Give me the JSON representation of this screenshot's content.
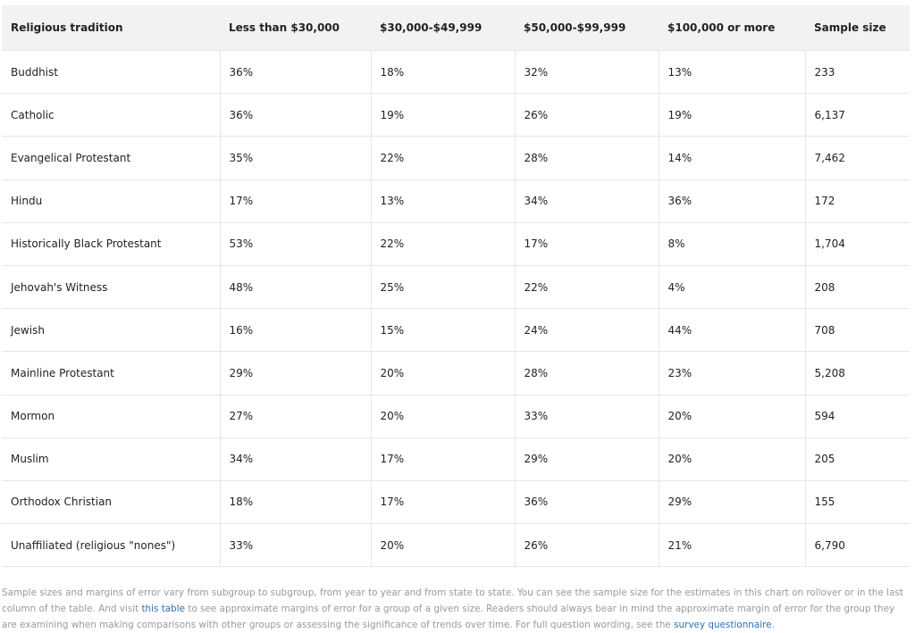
{
  "table": {
    "headers": [
      "Religious tradition",
      "Less than $30,000",
      "$30,000-$49,999",
      "$50,000-$99,999",
      "$100,000 or more",
      "Sample size"
    ],
    "rows": [
      [
        "Buddhist",
        "36%",
        "18%",
        "32%",
        "13%",
        "233"
      ],
      [
        "Catholic",
        "36%",
        "19%",
        "26%",
        "19%",
        "6,137"
      ],
      [
        "Evangelical Protestant",
        "35%",
        "22%",
        "28%",
        "14%",
        "7,462"
      ],
      [
        "Hindu",
        "17%",
        "13%",
        "34%",
        "36%",
        "172"
      ],
      [
        "Historically Black Protestant",
        "53%",
        "22%",
        "17%",
        "8%",
        "1,704"
      ],
      [
        "Jehovah's Witness",
        "48%",
        "25%",
        "22%",
        "4%",
        "208"
      ],
      [
        "Jewish",
        "16%",
        "15%",
        "24%",
        "44%",
        "708"
      ],
      [
        "Mainline Protestant",
        "29%",
        "20%",
        "28%",
        "23%",
        "5,208"
      ],
      [
        "Mormon",
        "27%",
        "20%",
        "33%",
        "20%",
        "594"
      ],
      [
        "Muslim",
        "34%",
        "17%",
        "29%",
        "20%",
        "205"
      ],
      [
        "Orthodox Christian",
        "18%",
        "17%",
        "36%",
        "29%",
        "155"
      ],
      [
        "Unaffiliated (religious \"nones\")",
        "33%",
        "20%",
        "26%",
        "21%",
        "6,790"
      ]
    ]
  },
  "footnote": {
    "text_1": "Sample sizes and margins of error vary from subgroup to subgroup, from year to year and from state to state. You can see the sample size for the estimates in this chart on rollover or in the last column of the table. And visit ",
    "link_1": "this table",
    "text_2": " to see approximate margins of error for a group of a given size. Readers should always bear in mind the approximate margin of error for the group they are examining when making comparisons with other groups or assessing the significance of trends over time. For full question wording, see the ",
    "link_2": "survey questionnaire",
    "text_3": "."
  }
}
